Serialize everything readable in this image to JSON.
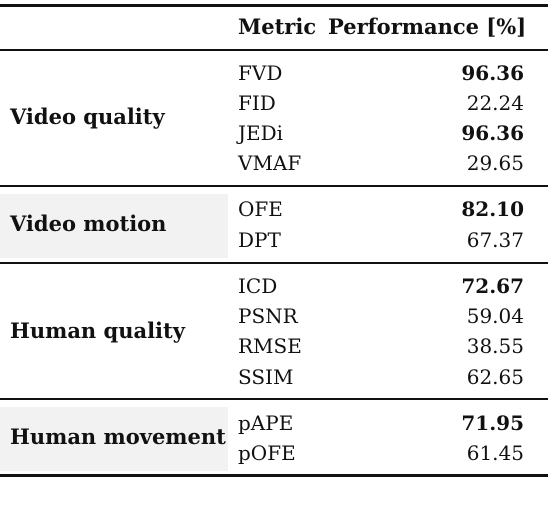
{
  "header": {
    "metric_label": "Metric",
    "performance_label": "Performance [%]"
  },
  "groups": [
    {
      "label": "Video quality",
      "rows": [
        {
          "metric": "FVD",
          "value": "96.36",
          "best": true
        },
        {
          "metric": "FID",
          "value": "22.24",
          "best": false
        },
        {
          "metric": "JEDi",
          "value": "96.36",
          "best": true
        },
        {
          "metric": "VMAF",
          "value": "29.65",
          "best": false
        }
      ]
    },
    {
      "label": "Video motion",
      "rows": [
        {
          "metric": "OFE",
          "value": "82.10",
          "best": true
        },
        {
          "metric": "DPT",
          "value": "67.37",
          "best": false
        }
      ]
    },
    {
      "label": "Human quality",
      "rows": [
        {
          "metric": "ICD",
          "value": "72.67",
          "best": true
        },
        {
          "metric": "PSNR",
          "value": "59.04",
          "best": false
        },
        {
          "metric": "RMSE",
          "value": "38.55",
          "best": false
        },
        {
          "metric": "SSIM",
          "value": "62.65",
          "best": false
        }
      ]
    },
    {
      "label": "Human movement",
      "rows": [
        {
          "metric": "pAPE",
          "value": "71.95",
          "best": true
        },
        {
          "metric": "pOFE",
          "value": "61.45",
          "best": false
        }
      ]
    }
  ]
}
